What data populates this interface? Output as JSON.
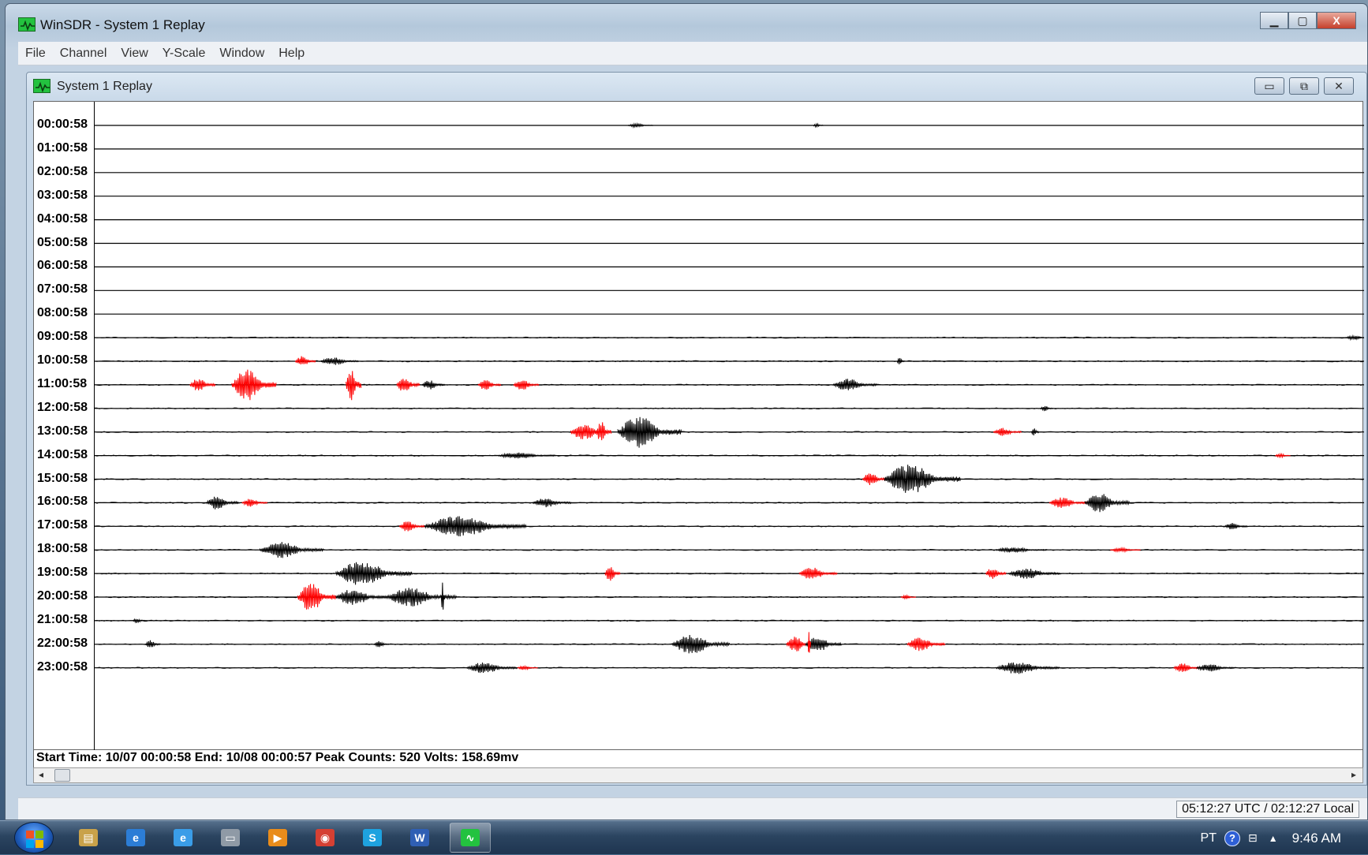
{
  "window": {
    "title": "WinSDR - System 1 Replay",
    "controls": {
      "minimize": "▁",
      "maximize": "▢",
      "close": "X"
    }
  },
  "menu": [
    "File",
    "Channel",
    "View",
    "Y-Scale",
    "Window",
    "Help"
  ],
  "child_window": {
    "title": "System 1 Replay",
    "controls": {
      "minimize": "▭",
      "maximize": "⧉",
      "close": "✕"
    }
  },
  "seismogram": {
    "rows": [
      {
        "label": "00:00:58",
        "events": [
          {
            "x": 0.42,
            "w": 0.02,
            "a": 3,
            "c": "black"
          },
          {
            "x": 0.566,
            "w": 0.008,
            "a": 3,
            "c": "black"
          }
        ]
      },
      {
        "label": "01:00:58",
        "events": []
      },
      {
        "label": "02:00:58",
        "events": []
      },
      {
        "label": "03:00:58",
        "events": []
      },
      {
        "label": "04:00:58",
        "events": []
      },
      {
        "label": "05:00:58",
        "events": []
      },
      {
        "label": "06:00:58",
        "events": []
      },
      {
        "label": "07:00:58",
        "events": []
      },
      {
        "label": "08:00:58",
        "events": []
      },
      {
        "label": "09:00:58",
        "events": [
          {
            "x": 0.985,
            "w": 0.02,
            "a": 3,
            "c": "black"
          }
        ]
      },
      {
        "label": "10:00:58",
        "events": [
          {
            "x": 0.158,
            "w": 0.016,
            "a": 8,
            "c": "red"
          },
          {
            "x": 0.178,
            "w": 0.03,
            "a": 6,
            "c": "black"
          },
          {
            "x": 0.632,
            "w": 0.006,
            "a": 6,
            "c": "black"
          }
        ]
      },
      {
        "label": "11:00:58",
        "events": [
          {
            "x": 0.075,
            "w": 0.02,
            "a": 10,
            "c": "red"
          },
          {
            "x": 0.108,
            "w": 0.035,
            "a": 24,
            "c": "red"
          },
          {
            "x": 0.198,
            "w": 0.012,
            "a": 26,
            "c": "red"
          },
          {
            "x": 0.238,
            "w": 0.018,
            "a": 12,
            "c": "red"
          },
          {
            "x": 0.258,
            "w": 0.018,
            "a": 7,
            "c": "black"
          },
          {
            "x": 0.302,
            "w": 0.018,
            "a": 8,
            "c": "red"
          },
          {
            "x": 0.33,
            "w": 0.02,
            "a": 8,
            "c": "red"
          },
          {
            "x": 0.582,
            "w": 0.034,
            "a": 9,
            "c": "black"
          }
        ]
      },
      {
        "label": "12:00:58",
        "events": [
          {
            "x": 0.745,
            "w": 0.01,
            "a": 4,
            "c": "black"
          }
        ]
      },
      {
        "label": "13:00:58",
        "events": [
          {
            "x": 0.375,
            "w": 0.03,
            "a": 12,
            "c": "red"
          },
          {
            "x": 0.395,
            "w": 0.012,
            "a": 16,
            "c": "red"
          },
          {
            "x": 0.412,
            "w": 0.05,
            "a": 24,
            "c": "black"
          },
          {
            "x": 0.708,
            "w": 0.022,
            "a": 6,
            "c": "red"
          },
          {
            "x": 0.738,
            "w": 0.006,
            "a": 6,
            "c": "black"
          }
        ]
      },
      {
        "label": "14:00:58",
        "events": [
          {
            "x": 0.318,
            "w": 0.045,
            "a": 5,
            "c": "black"
          },
          {
            "x": 0.93,
            "w": 0.012,
            "a": 3,
            "c": "red"
          }
        ]
      },
      {
        "label": "15:00:58",
        "events": [
          {
            "x": 0.605,
            "w": 0.018,
            "a": 10,
            "c": "red"
          },
          {
            "x": 0.622,
            "w": 0.06,
            "a": 22,
            "c": "black"
          }
        ]
      },
      {
        "label": "16:00:58",
        "events": [
          {
            "x": 0.088,
            "w": 0.025,
            "a": 10,
            "c": "black"
          },
          {
            "x": 0.116,
            "w": 0.02,
            "a": 6,
            "c": "red"
          },
          {
            "x": 0.345,
            "w": 0.03,
            "a": 7,
            "c": "black"
          },
          {
            "x": 0.752,
            "w": 0.03,
            "a": 8,
            "c": "red"
          },
          {
            "x": 0.78,
            "w": 0.035,
            "a": 14,
            "c": "black"
          }
        ]
      },
      {
        "label": "17:00:58",
        "events": [
          {
            "x": 0.24,
            "w": 0.02,
            "a": 8,
            "c": "red"
          },
          {
            "x": 0.26,
            "w": 0.08,
            "a": 16,
            "c": "black"
          },
          {
            "x": 0.89,
            "w": 0.018,
            "a": 5,
            "c": "black"
          }
        ]
      },
      {
        "label": "18:00:58",
        "events": [
          {
            "x": 0.13,
            "w": 0.05,
            "a": 12,
            "c": "black"
          },
          {
            "x": 0.71,
            "w": 0.04,
            "a": 4,
            "c": "black"
          },
          {
            "x": 0.8,
            "w": 0.024,
            "a": 3,
            "c": "red"
          }
        ]
      },
      {
        "label": "19:00:58",
        "events": [
          {
            "x": 0.19,
            "w": 0.06,
            "a": 18,
            "c": "black"
          },
          {
            "x": 0.402,
            "w": 0.012,
            "a": 12,
            "c": "red"
          },
          {
            "x": 0.555,
            "w": 0.03,
            "a": 9,
            "c": "red"
          },
          {
            "x": 0.702,
            "w": 0.016,
            "a": 9,
            "c": "red"
          },
          {
            "x": 0.72,
            "w": 0.04,
            "a": 8,
            "c": "black"
          }
        ]
      },
      {
        "label": "20:00:58",
        "events": [
          {
            "x": 0.16,
            "w": 0.03,
            "a": 22,
            "c": "red"
          },
          {
            "x": 0.19,
            "w": 0.04,
            "a": 12,
            "c": "black"
          },
          {
            "x": 0.23,
            "w": 0.055,
            "a": 14,
            "c": "black"
          },
          {
            "x": 0.273,
            "w": 0.003,
            "a": 26,
            "c": "black"
          },
          {
            "x": 0.635,
            "w": 0.012,
            "a": 3,
            "c": "red"
          }
        ]
      },
      {
        "label": "21:00:58",
        "events": [
          {
            "x": 0.03,
            "w": 0.01,
            "a": 4,
            "c": "black"
          }
        ]
      },
      {
        "label": "22:00:58",
        "events": [
          {
            "x": 0.04,
            "w": 0.012,
            "a": 6,
            "c": "black"
          },
          {
            "x": 0.22,
            "w": 0.012,
            "a": 5,
            "c": "black"
          },
          {
            "x": 0.455,
            "w": 0.045,
            "a": 14,
            "c": "black"
          },
          {
            "x": 0.545,
            "w": 0.02,
            "a": 12,
            "c": "red"
          },
          {
            "x": 0.56,
            "w": 0.028,
            "a": 12,
            "c": "black"
          },
          {
            "x": 0.562,
            "w": 0.002,
            "a": 30,
            "c": "red"
          },
          {
            "x": 0.64,
            "w": 0.03,
            "a": 10,
            "c": "red"
          }
        ]
      },
      {
        "label": "23:00:58",
        "events": [
          {
            "x": 0.293,
            "w": 0.04,
            "a": 8,
            "c": "black"
          },
          {
            "x": 0.333,
            "w": 0.016,
            "a": 3,
            "c": "red"
          },
          {
            "x": 0.71,
            "w": 0.05,
            "a": 9,
            "c": "black"
          },
          {
            "x": 0.85,
            "w": 0.02,
            "a": 7,
            "c": "red"
          },
          {
            "x": 0.868,
            "w": 0.03,
            "a": 6,
            "c": "black"
          }
        ]
      }
    ],
    "colors": {
      "trace_black": "#000000",
      "trace_red": "#ff0000",
      "background": "#ffffff"
    }
  },
  "info_line": "Start Time: 10/07 00:00:58  End: 10/08 00:00:57  Peak Counts: 520  Volts: 158.69mv",
  "scroll": {
    "left_arrow": "◂",
    "right_arrow": "▸"
  },
  "status": {
    "clock": "05:12:27 UTC / 02:12:27 Local"
  },
  "taskbar": {
    "apps": [
      {
        "name": "file-explorer-icon",
        "glyph": "▤",
        "color": "#c9a24a"
      },
      {
        "name": "ie-blue-icon",
        "glyph": "e",
        "color": "#2c7dd6"
      },
      {
        "name": "internet-explorer-icon",
        "glyph": "e",
        "color": "#3a9de8"
      },
      {
        "name": "device-icon",
        "glyph": "▭",
        "color": "#8f9aa6"
      },
      {
        "name": "media-player-icon",
        "glyph": "▶",
        "color": "#e98c1b"
      },
      {
        "name": "chrome-icon",
        "glyph": "◉",
        "color": "#d54033"
      },
      {
        "name": "skype-icon",
        "glyph": "S",
        "color": "#1ea2e0"
      },
      {
        "name": "word-icon",
        "glyph": "W",
        "color": "#2f5fb4"
      },
      {
        "name": "winsdr-taskbar-icon",
        "glyph": "∿",
        "color": "#23c23f"
      }
    ],
    "lang": "PT",
    "help": "?",
    "net": "⊟",
    "up": "▲",
    "time": "9:46 AM"
  }
}
